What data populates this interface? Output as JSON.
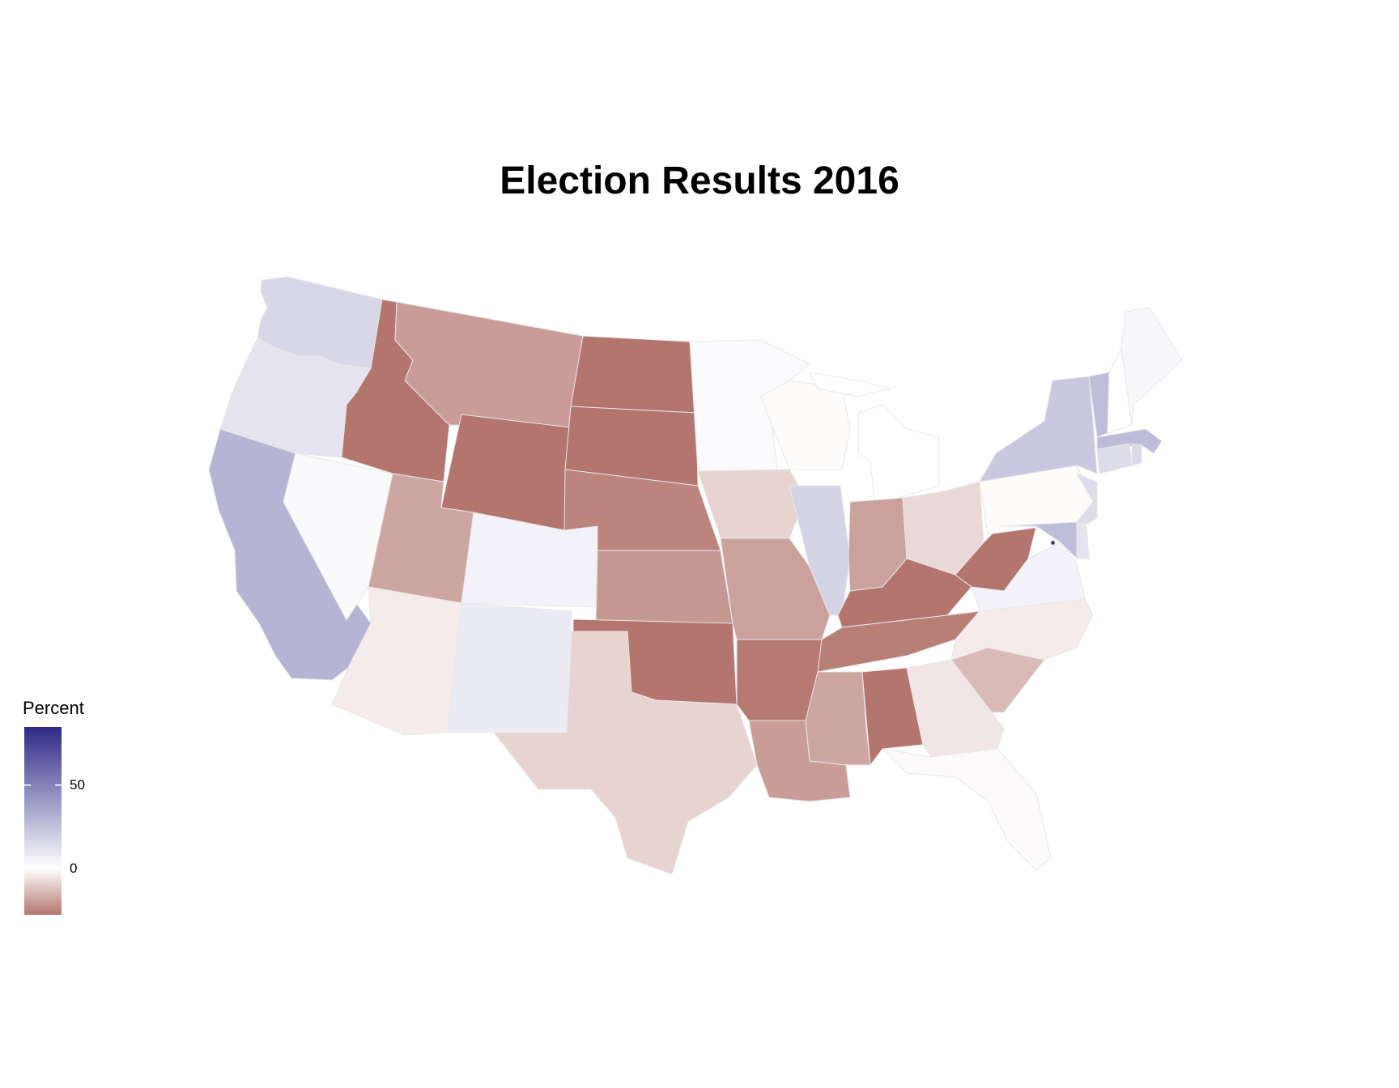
{
  "title": "Election Results 2016",
  "legend": {
    "title": "Percent",
    "ticks": [
      {
        "value": 50,
        "label": "50"
      },
      {
        "value": 0,
        "label": "0"
      }
    ],
    "range": [
      -28,
      85
    ],
    "colors": {
      "low": "#b3756d",
      "mid": "#ffffff",
      "high": "#2e2a86"
    }
  },
  "chart_data": {
    "type": "choropleth",
    "title": "Election Results 2016",
    "legend_title": "Percent",
    "color_range": [
      -28,
      85
    ],
    "values": [
      {
        "state": "Washington",
        "value": 16
      },
      {
        "state": "Oregon",
        "value": 11
      },
      {
        "state": "California",
        "value": 30
      },
      {
        "state": "Nevada",
        "value": 2
      },
      {
        "state": "Idaho",
        "value": -32
      },
      {
        "state": "Montana",
        "value": -20
      },
      {
        "state": "Wyoming",
        "value": -46
      },
      {
        "state": "Utah",
        "value": -18
      },
      {
        "state": "Arizona",
        "value": -4
      },
      {
        "state": "Colorado",
        "value": 5
      },
      {
        "state": "New Mexico",
        "value": 8
      },
      {
        "state": "North Dakota",
        "value": -36
      },
      {
        "state": "South Dakota",
        "value": -30
      },
      {
        "state": "Nebraska",
        "value": -25
      },
      {
        "state": "Kansas",
        "value": -21
      },
      {
        "state": "Oklahoma",
        "value": -36
      },
      {
        "state": "Texas",
        "value": -9
      },
      {
        "state": "Minnesota",
        "value": 1.5
      },
      {
        "state": "Iowa",
        "value": -9
      },
      {
        "state": "Missouri",
        "value": -19
      },
      {
        "state": "Arkansas",
        "value": -27
      },
      {
        "state": "Louisiana",
        "value": -20
      },
      {
        "state": "Wisconsin",
        "value": -0.7
      },
      {
        "state": "Illinois",
        "value": 17
      },
      {
        "state": "Michigan",
        "value": -0.2
      },
      {
        "state": "Indiana",
        "value": -19
      },
      {
        "state": "Ohio",
        "value": -8
      },
      {
        "state": "Kentucky",
        "value": -30
      },
      {
        "state": "Tennessee",
        "value": -26
      },
      {
        "state": "Mississippi",
        "value": -18
      },
      {
        "state": "Alabama",
        "value": -28
      },
      {
        "state": "Georgia",
        "value": -5
      },
      {
        "state": "Florida",
        "value": -1
      },
      {
        "state": "South Carolina",
        "value": -14
      },
      {
        "state": "North Carolina",
        "value": -4
      },
      {
        "state": "Virginia",
        "value": 5
      },
      {
        "state": "West Virginia",
        "value": -42
      },
      {
        "state": "Pennsylvania",
        "value": -0.7
      },
      {
        "state": "New York",
        "value": 22
      },
      {
        "state": "Vermont",
        "value": 26
      },
      {
        "state": "New Hampshire",
        "value": 0.4
      },
      {
        "state": "Maine",
        "value": 3
      },
      {
        "state": "Massachusetts",
        "value": 27
      },
      {
        "state": "Rhode Island",
        "value": 15
      },
      {
        "state": "Connecticut",
        "value": 14
      },
      {
        "state": "New Jersey",
        "value": 14
      },
      {
        "state": "Delaware",
        "value": 11
      },
      {
        "state": "Maryland",
        "value": 26
      },
      {
        "state": "District of Columbia",
        "value": 87
      }
    ]
  }
}
